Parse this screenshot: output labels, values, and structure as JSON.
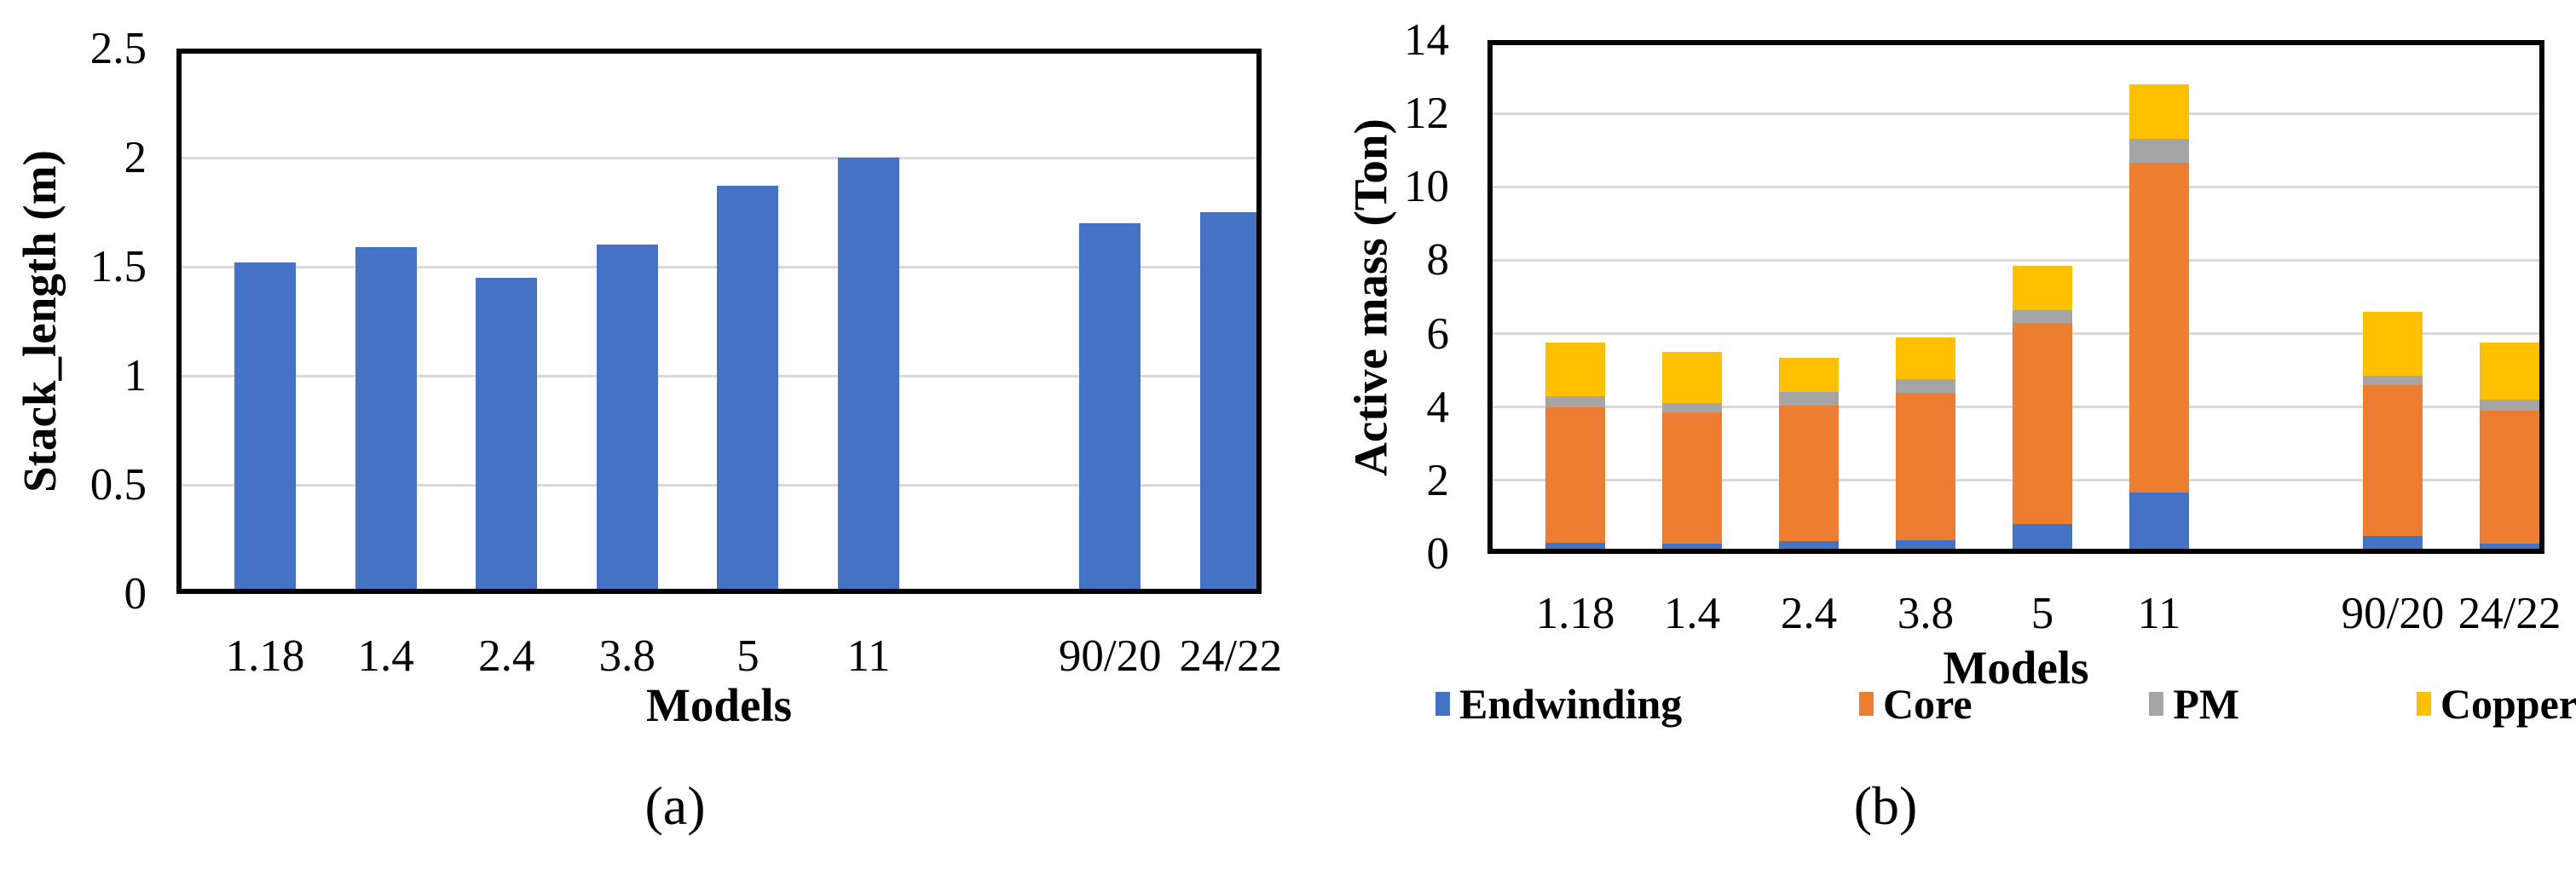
{
  "figure": {
    "background": "#FFFFFF"
  },
  "colors": {
    "endwinding_blue": "#4472C4",
    "core_orange": "#ED7D31",
    "pm_gray": "#A5A5A5",
    "copper_yellow": "#FFC000",
    "gridline": "#D9D9D9",
    "axis_frame": "#000000"
  },
  "chart_data": [
    {
      "id": "a",
      "type": "bar",
      "caption": "(a)",
      "ylabel": "Stack_length (m)",
      "xlabel": "Models",
      "ylim": [
        0,
        2.5
      ],
      "grid": true,
      "legend_position": "none",
      "yticks": [
        0,
        0.5,
        1,
        1.5,
        2,
        2.5
      ],
      "ytick_labels": [
        "0",
        "0.5",
        "1",
        "1.5",
        "2",
        "2.5"
      ],
      "categories": [
        "1.18",
        "1.4",
        "2.4",
        "3.8",
        "5",
        "11",
        "",
        "90/20",
        "24/22"
      ],
      "values": [
        1.52,
        1.59,
        1.45,
        1.6,
        1.87,
        2.0,
        null,
        1.7,
        1.75
      ],
      "bar_color": "#4472C4"
    },
    {
      "id": "b",
      "type": "stacked-bar",
      "caption": "(b)",
      "ylabel": "Active mass (Ton)",
      "xlabel": "Models",
      "ylim": [
        0,
        14
      ],
      "grid": true,
      "legend_position": "bottom",
      "yticks": [
        0,
        2,
        4,
        6,
        8,
        10,
        12,
        14
      ],
      "ytick_labels": [
        "0",
        "2",
        "4",
        "6",
        "8",
        "10",
        "12",
        "14"
      ],
      "categories": [
        "1.18",
        "1.4",
        "2.4",
        "3.8",
        "5",
        "11",
        "",
        "90/20",
        "24/22"
      ],
      "series": [
        {
          "name": "Endwinding",
          "color": "#4472C4",
          "values": [
            0.3,
            0.27,
            0.35,
            0.38,
            0.82,
            1.68,
            null,
            0.48,
            0.27
          ]
        },
        {
          "name": "Core",
          "color": "#ED7D31",
          "values": [
            3.7,
            3.58,
            3.7,
            4.0,
            5.48,
            8.97,
            null,
            4.12,
            3.63
          ]
        },
        {
          "name": "PM",
          "color": "#A5A5A5",
          "values": [
            0.3,
            0.27,
            0.35,
            0.37,
            0.35,
            0.65,
            null,
            0.25,
            0.3
          ]
        },
        {
          "name": "Copper",
          "color": "#FFC000",
          "values": [
            1.45,
            1.38,
            0.95,
            1.15,
            1.2,
            1.5,
            null,
            1.75,
            1.55
          ]
        }
      ],
      "stack_totals": [
        5.75,
        5.5,
        5.35,
        5.9,
        7.85,
        12.8,
        null,
        6.6,
        5.75
      ],
      "legend": [
        "Endwinding",
        "Core",
        "PM",
        "Copper"
      ]
    }
  ]
}
